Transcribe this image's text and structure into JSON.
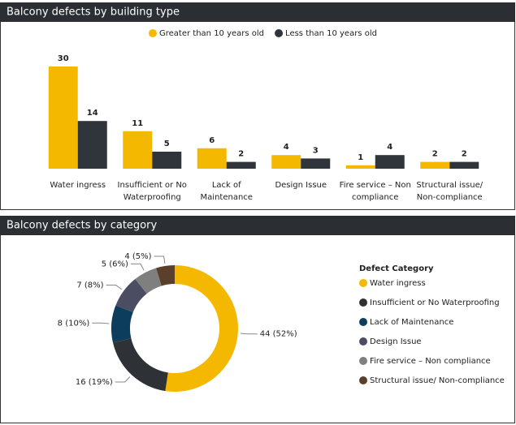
{
  "charts": [
    {
      "chart_data": {
        "type": "bar",
        "title": "Balcony defects by building type",
        "categories": [
          "Water ingress",
          "Insufficient or No Waterproofing",
          "Lack of Maintenance",
          "Design Issue",
          "Fire service – Non compliance",
          "Structural issue/ Non-compliance"
        ],
        "series": [
          {
            "name": "Greater than 10 years old",
            "color": "#f5b800",
            "values": [
              30,
              11,
              6,
              4,
              1,
              2
            ]
          },
          {
            "name": "Less than 10 years old",
            "color": "#30353b",
            "values": [
              14,
              5,
              2,
              3,
              4,
              2
            ]
          }
        ],
        "legend": "top"
      }
    },
    {
      "chart_data": {
        "type": "donut",
        "title": "Balcony defects by category",
        "legend_title": "Defect Category",
        "categories": [
          "Water ingress",
          "Insufficient or No Waterproofing",
          "Lack of Maintenance",
          "Design Issue",
          "Fire service – Non compliance",
          "Structural issue/ Non-compliance"
        ],
        "values": [
          44,
          16,
          8,
          7,
          5,
          4
        ],
        "value_labels": [
          "44 (52%)",
          "16 (19%)",
          "8 (10%)",
          "7 (8%)",
          "5 (6%)",
          "4 (5%)"
        ],
        "colors": [
          "#f5b800",
          "#2e3236",
          "#0d3d5c",
          "#4b4e62",
          "#7f7f7f",
          "#5a3f2b"
        ],
        "legend": "right"
      }
    }
  ]
}
